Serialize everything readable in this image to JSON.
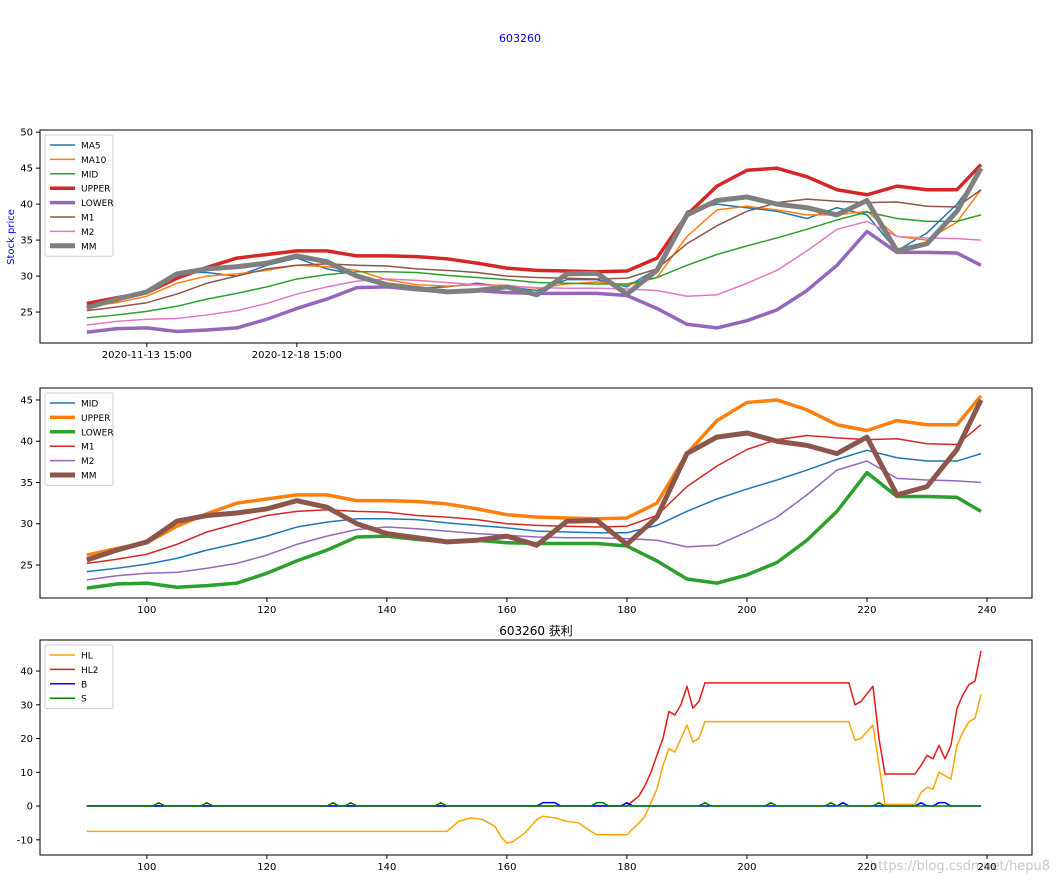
{
  "chart_data": [
    {
      "type": "line",
      "title": "603260",
      "ylabel": "Stock price",
      "x": [
        90,
        95,
        100,
        105,
        110,
        115,
        120,
        125,
        130,
        135,
        140,
        145,
        150,
        155,
        160,
        165,
        170,
        175,
        180,
        185,
        190,
        195,
        200,
        205,
        210,
        215,
        220,
        225,
        230,
        235,
        239
      ],
      "xlim": [
        82.2,
        247.5
      ],
      "xticks": [
        {
          "value": 100,
          "label": "2020-11-13 15:00"
        },
        {
          "value": 125,
          "label": "2020-12-18 15:00"
        }
      ],
      "ylim": [
        20.7,
        50.3
      ],
      "yticks": [
        25,
        30,
        35,
        40,
        45,
        50
      ],
      "legend": "upper left",
      "series": [
        {
          "name": "MA5",
          "color": "#1f77b4",
          "width": 1.5,
          "values": [
            25.5,
            26.5,
            28.0,
            30.5,
            30.5,
            30.0,
            31.5,
            32.5,
            31.0,
            30.2,
            29.0,
            28.3,
            28.5,
            29.0,
            28.5,
            28.0,
            29.5,
            29.5,
            28.5,
            31.0,
            39.0,
            40.0,
            39.5,
            39.0,
            38.0,
            39.5,
            38.5,
            33.5,
            36.0,
            40.0,
            44.5
          ]
        },
        {
          "name": "MA10",
          "color": "#ff7f0e",
          "width": 1.5,
          "values": [
            25.8,
            26.3,
            27.2,
            29.0,
            30.0,
            30.3,
            30.8,
            31.5,
            31.3,
            30.8,
            29.5,
            28.8,
            28.6,
            28.8,
            28.7,
            28.3,
            28.9,
            29.2,
            28.7,
            29.8,
            35.5,
            39.2,
            39.7,
            39.2,
            38.5,
            38.5,
            39.0,
            35.5,
            35.0,
            37.5,
            42.0
          ]
        },
        {
          "name": "MID",
          "color": "#2ca02c",
          "width": 1.5,
          "values": [
            24.2,
            24.6,
            25.1,
            25.8,
            26.8,
            27.6,
            28.5,
            29.6,
            30.2,
            30.6,
            30.6,
            30.5,
            30.1,
            29.8,
            29.5,
            29.1,
            29.0,
            28.9,
            28.9,
            29.8,
            31.5,
            33.0,
            34.2,
            35.3,
            36.5,
            37.8,
            38.9,
            38.0,
            37.6,
            37.6,
            38.5
          ]
        },
        {
          "name": "UPPER",
          "color": "#d62728",
          "width": 3.5,
          "values": [
            26.2,
            27.0,
            27.7,
            29.7,
            31.2,
            32.5,
            33.0,
            33.5,
            33.5,
            32.8,
            32.8,
            32.7,
            32.4,
            31.8,
            31.1,
            30.8,
            30.7,
            30.6,
            30.7,
            32.5,
            38.5,
            42.5,
            44.7,
            45.0,
            43.8,
            42.0,
            41.3,
            42.5,
            42.0,
            42.0,
            45.5
          ]
        },
        {
          "name": "LOWER",
          "color": "#9467bd",
          "width": 3.5,
          "values": [
            22.2,
            22.7,
            22.8,
            22.3,
            22.5,
            22.8,
            24.0,
            25.5,
            26.8,
            28.4,
            28.5,
            28.1,
            27.8,
            28.0,
            27.7,
            27.6,
            27.6,
            27.6,
            27.3,
            25.5,
            23.3,
            22.8,
            23.8,
            25.3,
            28.0,
            31.5,
            36.2,
            33.3,
            33.3,
            33.2,
            31.5
          ]
        },
        {
          "name": "M1",
          "color": "#8c564b",
          "width": 1.5,
          "values": [
            25.2,
            25.7,
            26.3,
            27.5,
            29.0,
            30.0,
            31.0,
            31.5,
            31.7,
            31.5,
            31.4,
            31.0,
            30.8,
            30.5,
            30.0,
            29.8,
            29.7,
            29.6,
            29.7,
            31.0,
            34.5,
            37.0,
            39.0,
            40.2,
            40.7,
            40.4,
            40.2,
            40.3,
            39.7,
            39.6,
            42.0
          ]
        },
        {
          "name": "M2",
          "color": "#e377c2",
          "width": 1.5,
          "values": [
            23.2,
            23.7,
            24.0,
            24.1,
            24.6,
            25.2,
            26.2,
            27.5,
            28.5,
            29.3,
            29.6,
            29.4,
            29.1,
            28.8,
            28.6,
            28.4,
            28.3,
            28.3,
            28.2,
            28.0,
            27.2,
            27.4,
            29.0,
            30.8,
            33.5,
            36.5,
            37.6,
            35.5,
            35.3,
            35.2,
            35.0
          ]
        },
        {
          "name": "MM",
          "color": "#7f7f7f",
          "width": 5,
          "values": [
            25.6,
            26.8,
            27.8,
            30.3,
            31.0,
            31.3,
            31.8,
            32.8,
            32.0,
            30.0,
            28.8,
            28.3,
            27.8,
            28.0,
            28.5,
            27.4,
            30.3,
            30.4,
            27.5,
            30.8,
            38.5,
            40.5,
            41.0,
            40.0,
            39.5,
            38.5,
            40.5,
            33.5,
            34.5,
            39.0,
            45.0
          ]
        }
      ]
    },
    {
      "type": "line",
      "x": [
        90,
        95,
        100,
        105,
        110,
        115,
        120,
        125,
        130,
        135,
        140,
        145,
        150,
        155,
        160,
        165,
        170,
        175,
        180,
        185,
        190,
        195,
        200,
        205,
        210,
        215,
        220,
        225,
        230,
        235,
        239
      ],
      "xlim": [
        82.2,
        247.5
      ],
      "xticks": [
        100,
        120,
        140,
        160,
        180,
        200,
        220,
        240
      ],
      "ylim": [
        21.0,
        46.45
      ],
      "yticks": [
        25,
        30,
        35,
        40,
        45
      ],
      "legend": "upper left",
      "series": [
        {
          "name": "MID",
          "color": "#1f77b4",
          "width": 1.5,
          "values": [
            24.2,
            24.6,
            25.1,
            25.8,
            26.8,
            27.6,
            28.5,
            29.6,
            30.2,
            30.6,
            30.6,
            30.5,
            30.1,
            29.8,
            29.5,
            29.1,
            29.0,
            28.9,
            28.9,
            29.8,
            31.5,
            33.0,
            34.2,
            35.3,
            36.5,
            37.8,
            38.9,
            38.0,
            37.6,
            37.6,
            38.5
          ]
        },
        {
          "name": "UPPER",
          "color": "#ff7f0e",
          "width": 3.5,
          "values": [
            26.2,
            27.0,
            27.7,
            29.7,
            31.2,
            32.5,
            33.0,
            33.5,
            33.5,
            32.8,
            32.8,
            32.7,
            32.4,
            31.8,
            31.1,
            30.8,
            30.7,
            30.6,
            30.7,
            32.5,
            38.5,
            42.5,
            44.7,
            45.0,
            43.8,
            42.0,
            41.3,
            42.5,
            42.0,
            42.0,
            45.5
          ]
        },
        {
          "name": "LOWER",
          "color": "#2ca02c",
          "width": 3.5,
          "values": [
            22.2,
            22.7,
            22.8,
            22.3,
            22.5,
            22.8,
            24.0,
            25.5,
            26.8,
            28.4,
            28.5,
            28.1,
            27.8,
            28.0,
            27.7,
            27.6,
            27.6,
            27.6,
            27.3,
            25.5,
            23.3,
            22.8,
            23.8,
            25.3,
            28.0,
            31.5,
            36.2,
            33.3,
            33.3,
            33.2,
            31.5
          ]
        },
        {
          "name": "M1",
          "color": "#d62728",
          "width": 1.5,
          "values": [
            25.2,
            25.7,
            26.3,
            27.5,
            29.0,
            30.0,
            31.0,
            31.5,
            31.7,
            31.5,
            31.4,
            31.0,
            30.8,
            30.5,
            30.0,
            29.8,
            29.7,
            29.6,
            29.7,
            31.0,
            34.5,
            37.0,
            39.0,
            40.2,
            40.7,
            40.4,
            40.2,
            40.3,
            39.7,
            39.6,
            42.0
          ]
        },
        {
          "name": "M2",
          "color": "#9467bd",
          "width": 1.5,
          "values": [
            23.2,
            23.7,
            24.0,
            24.1,
            24.6,
            25.2,
            26.2,
            27.5,
            28.5,
            29.3,
            29.6,
            29.4,
            29.1,
            28.8,
            28.6,
            28.4,
            28.3,
            28.3,
            28.2,
            28.0,
            27.2,
            27.4,
            29.0,
            30.8,
            33.5,
            36.5,
            37.6,
            35.5,
            35.3,
            35.2,
            35.0
          ]
        },
        {
          "name": "MM",
          "color": "#8c564b",
          "width": 5,
          "values": [
            25.6,
            26.8,
            27.8,
            30.3,
            31.0,
            31.3,
            31.8,
            32.8,
            32.0,
            30.0,
            28.8,
            28.3,
            27.8,
            28.0,
            28.5,
            27.4,
            30.3,
            30.4,
            27.5,
            30.8,
            38.5,
            40.5,
            41.0,
            40.0,
            39.5,
            38.5,
            40.5,
            33.5,
            34.5,
            39.0,
            45.0
          ]
        }
      ]
    },
    {
      "type": "line",
      "title": "603260  获利",
      "watermark": "https://blog.csdn.net/hepu8",
      "xlim": [
        82.2,
        247.5
      ],
      "xticks": [
        100,
        120,
        140,
        160,
        180,
        200,
        220,
        240
      ],
      "ylim": [
        -14.5,
        49.2
      ],
      "yticks": [
        -10,
        0,
        10,
        20,
        30,
        40
      ],
      "legend": "upper left",
      "series": [
        {
          "name": "HL",
          "color": "#ffa500",
          "width": 1.5,
          "x": [
            90,
            150,
            152,
            154,
            156,
            158,
            159,
            160,
            161,
            163,
            165,
            166,
            168,
            170,
            172,
            174,
            175,
            180,
            182,
            183,
            185,
            186,
            187,
            188,
            190,
            191,
            192,
            193,
            217,
            218,
            219,
            221,
            223,
            228,
            229,
            230,
            231,
            232,
            233,
            234,
            235,
            236,
            237,
            238,
            239
          ],
          "values": [
            -7.5,
            -7.5,
            -4.5,
            -3.5,
            -4,
            -6,
            -9,
            -11,
            -10.5,
            -8,
            -4,
            -3,
            -3.5,
            -4.5,
            -5,
            -7.5,
            -8.5,
            -8.5,
            -5,
            -3,
            5,
            12,
            17,
            16,
            24,
            19,
            20,
            25,
            25,
            19.5,
            20,
            24,
            0.5,
            0.5,
            4,
            5.5,
            5,
            10,
            9,
            8,
            18,
            22,
            25,
            26,
            33
          ]
        },
        {
          "name": "HL2",
          "color": "#e31a1c",
          "width": 1.5,
          "x": [
            90,
            180,
            181,
            182,
            183,
            184,
            185,
            186,
            187,
            188,
            189,
            190,
            191,
            192,
            193,
            217,
            218,
            219,
            221,
            222,
            223,
            228,
            229,
            230,
            231,
            232,
            233,
            234,
            235,
            236,
            237,
            238,
            239
          ],
          "values": [
            0,
            0,
            1.5,
            3,
            6,
            10,
            15,
            20,
            28,
            27,
            30,
            35.5,
            29,
            31,
            36.5,
            36.5,
            30,
            31,
            35.5,
            20,
            9.5,
            9.5,
            12,
            15,
            14,
            18,
            14,
            18,
            29,
            33,
            36,
            37,
            46
          ]
        },
        {
          "name": "B",
          "color": "#0000ff",
          "width": 1.5,
          "x": [
            90,
            165,
            166,
            168,
            169,
            179,
            180,
            181,
            215,
            216,
            217,
            228,
            229,
            230,
            231,
            232,
            233,
            234,
            239
          ],
          "values": [
            0,
            0,
            1,
            1,
            0,
            0,
            1,
            0,
            0,
            1,
            0,
            0,
            1,
            0,
            0,
            1,
            1,
            0,
            0
          ]
        },
        {
          "name": "S",
          "color": "#008000",
          "width": 1.5,
          "x": [
            90,
            101,
            102,
            103,
            109,
            110,
            111,
            130,
            131,
            132,
            133,
            134,
            135,
            148,
            149,
            150,
            174,
            175,
            176,
            177,
            192,
            193,
            194,
            203,
            204,
            205,
            213,
            214,
            215,
            221,
            222,
            223,
            239
          ],
          "values": [
            0,
            0,
            1,
            0,
            0,
            1,
            0,
            0,
            1,
            0,
            0,
            1,
            0,
            0,
            1,
            0,
            0,
            1,
            1,
            0,
            0,
            1,
            0,
            0,
            1,
            0,
            0,
            1,
            0,
            0,
            1,
            0,
            0
          ]
        }
      ]
    }
  ]
}
